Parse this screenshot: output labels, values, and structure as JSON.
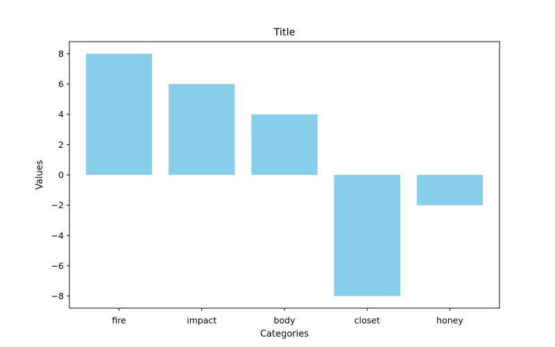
{
  "chart_data": {
    "type": "bar",
    "title": "Title",
    "xlabel": "Categories",
    "ylabel": "Values",
    "categories": [
      "fire",
      "impact",
      "body",
      "closet",
      "honey"
    ],
    "values": [
      8,
      6,
      4,
      -8,
      -2
    ],
    "ylim": [
      -8.8,
      8.8
    ],
    "yticks": [
      8,
      6,
      4,
      2,
      0,
      -2,
      -4,
      -6,
      -8
    ],
    "ytick_labels": [
      "8",
      "6",
      "4",
      "2",
      "0",
      "−2",
      "−4",
      "−6",
      "−8"
    ],
    "bar_color": "#87ceeb",
    "grid": false,
    "legend": "none"
  }
}
